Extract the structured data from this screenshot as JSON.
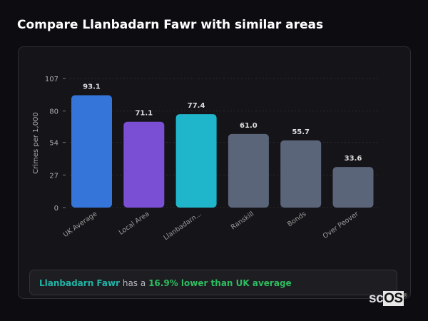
{
  "title": "Compare Llanbadarn Fawr with similar areas",
  "chart_data": {
    "type": "bar",
    "title": "",
    "xlabel": "",
    "ylabel": "Crimes per 1,000",
    "ylim": [
      0,
      107
    ],
    "yticks": [
      0,
      27,
      54,
      80,
      107
    ],
    "grid": true,
    "categories": [
      "UK Average",
      "Local Area",
      "Llanbadarn...",
      "Ranskill",
      "Bonds",
      "Over Peover"
    ],
    "values": [
      93.1,
      71.1,
      77.4,
      61.0,
      55.7,
      33.6
    ],
    "value_labels": [
      "93.1",
      "71.1",
      "77.4",
      "61.0",
      "55.7",
      "33.6"
    ],
    "colors": [
      "#3574d8",
      "#7b4fd4",
      "#1fb6cc",
      "#5b6579",
      "#5b6579",
      "#5b6579"
    ]
  },
  "summary": {
    "area": "Llanbadarn Fawr",
    "connector": "has a",
    "comparison": "16.9% lower than UK average"
  },
  "logo": {
    "text_a": "sc",
    "text_b": "OS",
    "mark": "®"
  }
}
